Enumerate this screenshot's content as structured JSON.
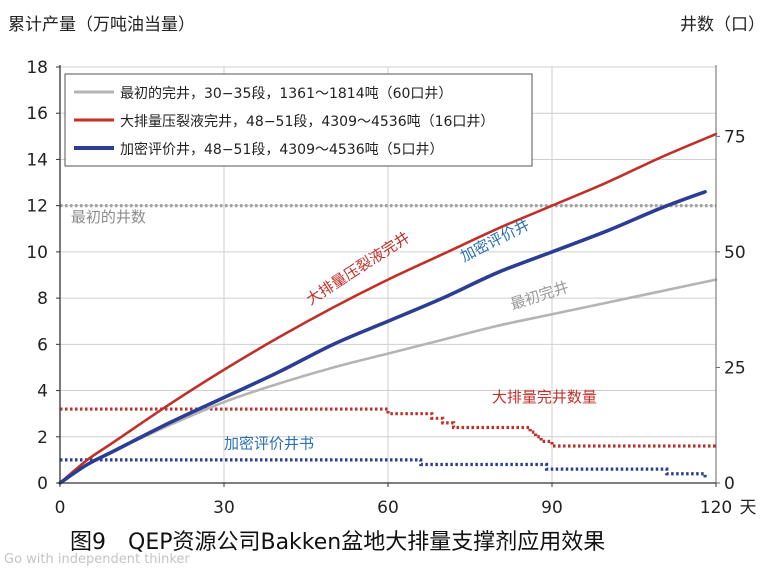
{
  "chart_data": {
    "type": "line",
    "title": "",
    "ylabel_left": "累计产量（万吨油当量）",
    "ylabel_right": "井数（口）",
    "xlabel": "天",
    "xlim": [
      0,
      120
    ],
    "ylim_left": [
      0,
      18
    ],
    "ylim_right": [
      0,
      90
    ],
    "x_ticks": [
      0,
      30,
      60,
      90,
      120
    ],
    "y_left_ticks": [
      0,
      2,
      4,
      6,
      8,
      10,
      12,
      14,
      16,
      18
    ],
    "y_right_ticks": [
      0,
      25,
      50,
      75
    ],
    "grid": true,
    "legend_position": "top-left",
    "legend": [
      {
        "label": "最初的完井，30−35段，1361～1814吨（60口井）",
        "color": "#b4b4b4"
      },
      {
        "label": "大排量压裂液完井，48−51段，4309～4536吨（16口井）",
        "color": "#c0302a"
      },
      {
        "label": "加密评价井，48−51段，4309～4536吨（5口井）",
        "color": "#2c3e93"
      }
    ],
    "series": [
      {
        "name": "最初的完井",
        "axis": "left",
        "style": "solid",
        "color": "#b4b4b4",
        "x": [
          0,
          5,
          10,
          20,
          30,
          40,
          50,
          60,
          70,
          80,
          90,
          100,
          110,
          120
        ],
        "y": [
          0,
          0.8,
          1.4,
          2.5,
          3.5,
          4.3,
          5.0,
          5.6,
          6.2,
          6.8,
          7.3,
          7.8,
          8.3,
          8.8
        ]
      },
      {
        "name": "大排量压裂液完井",
        "axis": "left",
        "style": "solid",
        "color": "#c0302a",
        "x": [
          0,
          5,
          10,
          20,
          30,
          40,
          50,
          60,
          70,
          80,
          90,
          100,
          110,
          120
        ],
        "y": [
          0,
          1.0,
          1.8,
          3.4,
          4.9,
          6.3,
          7.6,
          8.8,
          9.9,
          11.0,
          12.0,
          13.0,
          14.1,
          15.1
        ]
      },
      {
        "name": "加密评价井",
        "axis": "left",
        "style": "solid",
        "color": "#2c3e93",
        "x": [
          0,
          5,
          10,
          20,
          30,
          40,
          50,
          60,
          70,
          80,
          90,
          100,
          110,
          118
        ],
        "y": [
          0,
          0.8,
          1.4,
          2.6,
          3.7,
          4.8,
          6.0,
          7.0,
          8.0,
          9.1,
          10.0,
          10.9,
          11.9,
          12.6
        ]
      },
      {
        "name": "最初的井数",
        "axis": "right",
        "style": "dotted",
        "color": "#a0a0a0",
        "x": [
          0,
          120
        ],
        "y": [
          60,
          60
        ]
      },
      {
        "name": "大排量完井数量",
        "axis": "right",
        "style": "dotted",
        "color": "#c0302a",
        "x": [
          0,
          59,
          60,
          66,
          68,
          70,
          72,
          74,
          86,
          87,
          88,
          89,
          90,
          120
        ],
        "y": [
          16,
          16,
          15,
          15,
          14,
          13,
          12,
          12,
          11,
          10,
          9,
          9,
          8,
          8
        ]
      },
      {
        "name": "加密评价井书",
        "axis": "right",
        "style": "dotted",
        "color": "#2c3e93",
        "x": [
          0,
          65,
          66,
          88,
          89,
          110,
          111,
          117,
          118
        ],
        "y": [
          5,
          5,
          4,
          4,
          3,
          3,
          2,
          2,
          1
        ]
      }
    ],
    "annotations": [
      {
        "text": "最初的井数",
        "color": "#8c8c8c",
        "x": 2,
        "y_right": 56.5
      },
      {
        "text": "大排量压裂液完井",
        "color": "#c0302a",
        "x": 55,
        "y": 9.1,
        "angle": -33
      },
      {
        "text": "加密评价井",
        "color": "#2c6fb3",
        "x": 80,
        "y": 10.3,
        "angle": -27
      },
      {
        "text": "最初完井",
        "color": "#9a9a9a",
        "x": 88,
        "y": 7.9,
        "angle": -18
      },
      {
        "text": "大排量完井数量",
        "color": "#c0302a",
        "x": 79,
        "y_right": 17.5
      },
      {
        "text": "加密评价井书",
        "color": "#2c6fb3",
        "x": 30,
        "y_right": 7.5
      }
    ],
    "caption": "图9　QEP资源公司Bakken盆地大排量支撑剂应用效果",
    "watermark": "Go with independent thinker"
  }
}
